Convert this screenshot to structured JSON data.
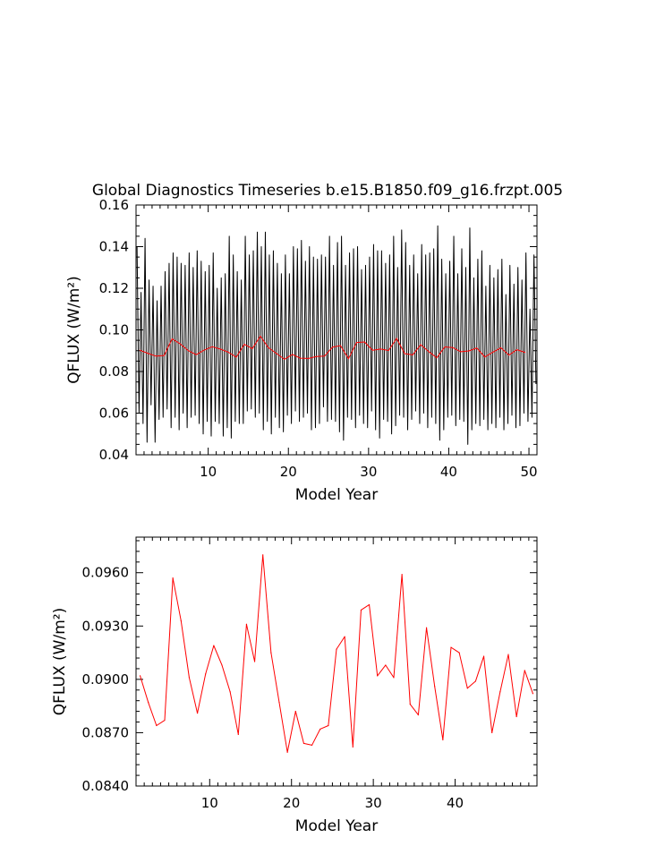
{
  "title": "Global Diagnostics Timeseries b.e15.B1850.f09_g16.frzpt.005",
  "chart_data": [
    {
      "type": "line",
      "xlabel": "Model Year",
      "ylabel": "QFLUX (W/m²)",
      "xlim": [
        1,
        51
      ],
      "ylim": [
        0.04,
        0.16
      ],
      "xticks": [
        "10",
        "20",
        "30",
        "40",
        "50"
      ],
      "yticks": [
        "0.04",
        "0.06",
        "0.08",
        "0.10",
        "0.12",
        "0.14",
        "0.16"
      ],
      "series": [
        {
          "color": "#000000",
          "monthly_peaks": [
            0.14,
            0.118,
            0.144,
            0.124,
            0.121,
            0.114,
            0.121,
            0.128,
            0.132,
            0.137,
            0.135,
            0.132,
            0.131,
            0.137,
            0.13,
            0.138,
            0.133,
            0.128,
            0.131,
            0.137,
            0.12,
            0.125,
            0.127,
            0.145,
            0.136,
            0.128,
            0.124,
            0.145,
            0.136,
            0.138,
            0.147,
            0.14,
            0.147,
            0.136,
            0.138,
            0.132,
            0.127,
            0.136,
            0.127,
            0.14,
            0.139,
            0.143,
            0.133,
            0.14,
            0.135,
            0.134,
            0.136,
            0.135,
            0.145,
            0.131,
            0.142,
            0.145,
            0.131,
            0.137,
            0.139,
            0.14,
            0.129,
            0.131,
            0.135,
            0.141,
            0.138,
            0.138,
            0.132,
            0.136,
            0.145,
            0.13,
            0.148,
            0.142,
            0.131,
            0.136,
            0.127,
            0.141,
            0.136,
            0.137,
            0.139,
            0.15,
            0.134,
            0.127,
            0.133,
            0.145,
            0.127,
            0.139,
            0.13,
            0.149,
            0.125,
            0.134,
            0.138,
            0.121,
            0.131,
            0.125,
            0.129,
            0.134,
            0.117,
            0.131,
            0.122,
            0.13,
            0.124,
            0.137,
            0.11,
            0.136
          ],
          "monthly_troughs": [
            0.06,
            0.055,
            0.046,
            0.064,
            0.046,
            0.057,
            0.058,
            0.062,
            0.053,
            0.058,
            0.052,
            0.06,
            0.053,
            0.058,
            0.059,
            0.055,
            0.05,
            0.056,
            0.049,
            0.056,
            0.055,
            0.049,
            0.053,
            0.048,
            0.056,
            0.055,
            0.055,
            0.061,
            0.062,
            0.058,
            0.06,
            0.052,
            0.056,
            0.05,
            0.058,
            0.053,
            0.051,
            0.059,
            0.055,
            0.061,
            0.056,
            0.058,
            0.06,
            0.052,
            0.053,
            0.055,
            0.063,
            0.056,
            0.057,
            0.056,
            0.051,
            0.047,
            0.058,
            0.057,
            0.053,
            0.059,
            0.055,
            0.053,
            0.061,
            0.052,
            0.048,
            0.057,
            0.056,
            0.05,
            0.054,
            0.059,
            0.058,
            0.052,
            0.057,
            0.061,
            0.055,
            0.06,
            0.053,
            0.058,
            0.055,
            0.047,
            0.052,
            0.058,
            0.059,
            0.054,
            0.057,
            0.056,
            0.045,
            0.052,
            0.055,
            0.054,
            0.057,
            0.052,
            0.055,
            0.053,
            0.058,
            0.052,
            0.055,
            0.059,
            0.053,
            0.054,
            0.06,
            0.056,
            0.058,
            0.074
          ]
        },
        {
          "color": "#ff0000",
          "x": [
            1.5,
            2.5,
            3.5,
            4.5,
            5.5,
            6.5,
            7.5,
            8.5,
            9.5,
            10.5,
            11.5,
            12.5,
            13.5,
            14.5,
            15.5,
            16.5,
            17.5,
            18.5,
            19.5,
            20.5,
            21.5,
            22.5,
            23.5,
            24.5,
            25.5,
            26.5,
            27.5,
            28.5,
            29.5,
            30.5,
            31.5,
            32.5,
            33.5,
            34.5,
            35.5,
            36.5,
            37.5,
            38.5,
            39.5,
            40.5,
            41.5,
            42.5,
            43.5,
            44.5,
            45.5,
            46.5,
            47.5,
            48.5,
            49.5
          ],
          "y": [
            0.0902,
            0.0887,
            0.0874,
            0.0877,
            0.0957,
            0.0933,
            0.0901,
            0.0881,
            0.0903,
            0.0919,
            0.0908,
            0.0893,
            0.0869,
            0.0931,
            0.091,
            0.097,
            0.0915,
            0.0887,
            0.0859,
            0.0882,
            0.0864,
            0.0863,
            0.0872,
            0.0874,
            0.0917,
            0.0924,
            0.0862,
            0.0939,
            0.0942,
            0.0902,
            0.0908,
            0.0901,
            0.0959,
            0.0886,
            0.088,
            0.0929,
            0.0896,
            0.0866,
            0.0918,
            0.0915,
            0.0895,
            0.0899,
            0.0913,
            0.087,
            0.0893,
            0.0914,
            0.0879,
            0.0905,
            0.0892
          ]
        }
      ]
    },
    {
      "type": "line",
      "xlabel": "Model Year",
      "ylabel": "QFLUX (W/m²)",
      "xlim": [
        1,
        50
      ],
      "ylim": [
        0.084,
        0.098
      ],
      "xticks": [
        "10",
        "20",
        "30",
        "40"
      ],
      "yticks": [
        "0.0840",
        "0.0870",
        "0.0900",
        "0.0930",
        "0.0960"
      ],
      "series": [
        {
          "color": "#ff0000",
          "x": [
            1.5,
            2.5,
            3.5,
            4.5,
            5.5,
            6.5,
            7.5,
            8.5,
            9.5,
            10.5,
            11.5,
            12.5,
            13.5,
            14.5,
            15.5,
            16.5,
            17.5,
            18.5,
            19.5,
            20.5,
            21.5,
            22.5,
            23.5,
            24.5,
            25.5,
            26.5,
            27.5,
            28.5,
            29.5,
            30.5,
            31.5,
            32.5,
            33.5,
            34.5,
            35.5,
            36.5,
            37.5,
            38.5,
            39.5,
            40.5,
            41.5,
            42.5,
            43.5,
            44.5,
            45.5,
            46.5,
            47.5,
            48.5,
            49.5
          ],
          "y": [
            0.0902,
            0.0887,
            0.0874,
            0.0877,
            0.0957,
            0.0933,
            0.0901,
            0.0881,
            0.0903,
            0.0919,
            0.0908,
            0.0893,
            0.0869,
            0.0931,
            0.091,
            0.097,
            0.0915,
            0.0887,
            0.0859,
            0.0882,
            0.0864,
            0.0863,
            0.0872,
            0.0874,
            0.0917,
            0.0924,
            0.0862,
            0.0939,
            0.0942,
            0.0902,
            0.0908,
            0.0901,
            0.0959,
            0.0886,
            0.088,
            0.0929,
            0.0896,
            0.0866,
            0.0918,
            0.0915,
            0.0895,
            0.0899,
            0.0913,
            0.087,
            0.0893,
            0.0914,
            0.0879,
            0.0905,
            0.0892
          ]
        }
      ]
    }
  ]
}
